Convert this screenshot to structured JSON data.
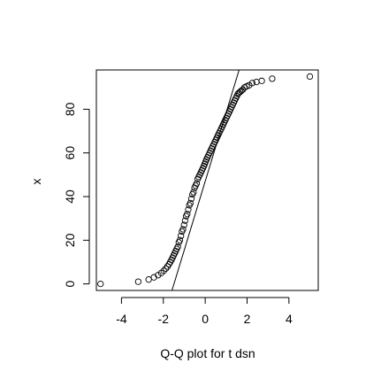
{
  "chart_data": {
    "type": "scatter",
    "title": "",
    "xlabel": "Q-Q plot for t dsn",
    "ylabel": "x",
    "xlim": [
      -5.2,
      5.4
    ],
    "ylim": [
      -3,
      98
    ],
    "x_ticks": [
      -4,
      -2,
      0,
      2,
      4
    ],
    "x_tick_labels": [
      "-4",
      "-2",
      "0",
      "2",
      "4"
    ],
    "y_ticks": [
      0,
      20,
      40,
      60,
      80
    ],
    "y_tick_labels": [
      "0",
      "20",
      "40",
      "60",
      "80"
    ],
    "grid": false,
    "legend": "none",
    "reference_line": {
      "intercept": 47,
      "slope": 31.5
    },
    "x": [
      -5.0,
      -3.2,
      -2.7,
      -2.45,
      -2.25,
      -2.1,
      -1.98,
      -1.88,
      -1.8,
      -1.73,
      -1.67,
      -1.61,
      -1.56,
      -1.51,
      -1.46,
      -1.41,
      -1.36,
      -1.31,
      -1.26,
      -1.21,
      -1.16,
      -1.11,
      -1.06,
      -1.01,
      -0.96,
      -0.91,
      -0.86,
      -0.81,
      -0.76,
      -0.71,
      -0.66,
      -0.61,
      -0.56,
      -0.51,
      -0.46,
      -0.41,
      -0.36,
      -0.31,
      -0.26,
      -0.21,
      -0.16,
      -0.11,
      -0.06,
      -0.02,
      0.02,
      0.06,
      0.11,
      0.16,
      0.21,
      0.26,
      0.31,
      0.36,
      0.41,
      0.46,
      0.51,
      0.56,
      0.61,
      0.66,
      0.71,
      0.76,
      0.81,
      0.86,
      0.91,
      0.96,
      1.01,
      1.06,
      1.11,
      1.16,
      1.21,
      1.26,
      1.31,
      1.36,
      1.41,
      1.46,
      1.51,
      1.56,
      1.61,
      1.67,
      1.73,
      1.8,
      1.88,
      1.98,
      2.1,
      2.25,
      2.45,
      2.7,
      3.2,
      5.0
    ],
    "y": [
      0,
      1,
      2,
      3,
      4,
      5,
      6,
      7,
      8,
      9,
      10,
      11,
      12,
      13,
      14,
      15,
      16,
      17,
      19,
      20,
      22,
      24,
      25,
      27,
      29,
      31,
      32,
      34,
      36,
      37,
      39,
      41,
      42,
      44,
      45,
      46,
      48,
      49,
      50,
      51,
      52,
      53,
      54,
      55,
      56,
      57,
      58,
      59,
      60,
      61,
      62,
      63,
      64,
      65,
      66,
      67,
      68,
      69,
      70,
      71,
      72,
      73,
      74,
      75,
      76,
      77,
      78,
      79,
      80,
      81,
      82,
      83,
      84,
      85,
      86,
      87,
      87.5,
      88,
      88.5,
      89,
      90,
      90.5,
      91,
      92,
      92.5,
      93,
      94,
      95
    ]
  },
  "colors": {
    "foreground": "#000000",
    "background": "#ffffff"
  }
}
